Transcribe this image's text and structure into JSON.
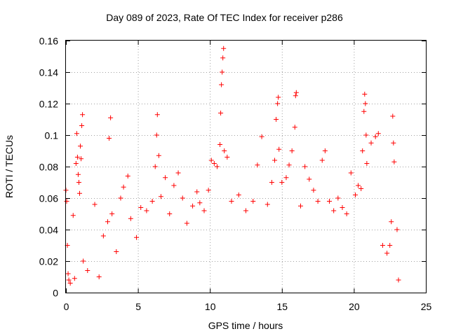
{
  "chart_data": {
    "type": "scatter",
    "title": "Day 089 of 2023, Rate Of TEC Index for receiver p286",
    "xlabel": "GPS time / hours",
    "ylabel": "ROTI / TECUs",
    "xlim": [
      0,
      25
    ],
    "ylim": [
      0,
      0.16
    ],
    "x_ticks": [
      "0",
      "5",
      "10",
      "15",
      "20",
      "25"
    ],
    "y_ticks": [
      "0",
      "0.02",
      "0.04",
      "0.06",
      "0.08",
      "0.1",
      "0.12",
      "0.14",
      "0.16"
    ],
    "grid": true,
    "marker": "plus",
    "color": "#ff0000",
    "series": [
      {
        "points": [
          [
            0.0,
            0.065
          ],
          [
            0.05,
            0.058
          ],
          [
            0.1,
            0.03
          ],
          [
            0.15,
            0.012
          ],
          [
            0.2,
            0.008
          ],
          [
            0.3,
            0.006
          ],
          [
            0.5,
            0.049
          ],
          [
            0.6,
            0.009
          ],
          [
            0.7,
            0.082
          ],
          [
            0.75,
            0.101
          ],
          [
            0.8,
            0.086
          ],
          [
            0.85,
            0.075
          ],
          [
            0.9,
            0.07
          ],
          [
            0.95,
            0.063
          ],
          [
            1.0,
            0.093
          ],
          [
            1.05,
            0.085
          ],
          [
            1.1,
            0.106
          ],
          [
            1.15,
            0.113
          ],
          [
            1.2,
            0.02
          ],
          [
            1.5,
            0.014
          ],
          [
            2.0,
            0.056
          ],
          [
            2.3,
            0.01
          ],
          [
            2.6,
            0.036
          ],
          [
            2.9,
            0.045
          ],
          [
            3.0,
            0.098
          ],
          [
            3.1,
            0.111
          ],
          [
            3.2,
            0.05
          ],
          [
            3.5,
            0.026
          ],
          [
            3.8,
            0.06
          ],
          [
            4.0,
            0.067
          ],
          [
            4.3,
            0.074
          ],
          [
            4.5,
            0.047
          ],
          [
            4.9,
            0.035
          ],
          [
            5.2,
            0.054
          ],
          [
            5.6,
            0.052
          ],
          [
            6.0,
            0.058
          ],
          [
            6.2,
            0.08
          ],
          [
            6.3,
            0.1
          ],
          [
            6.35,
            0.113
          ],
          [
            6.45,
            0.087
          ],
          [
            6.6,
            0.061
          ],
          [
            6.9,
            0.073
          ],
          [
            7.2,
            0.05
          ],
          [
            7.5,
            0.068
          ],
          [
            7.8,
            0.076
          ],
          [
            8.1,
            0.06
          ],
          [
            8.4,
            0.044
          ],
          [
            8.8,
            0.055
          ],
          [
            9.1,
            0.064
          ],
          [
            9.3,
            0.057
          ],
          [
            9.6,
            0.052
          ],
          [
            9.9,
            0.065
          ],
          [
            10.1,
            0.084
          ],
          [
            10.3,
            0.082
          ],
          [
            10.5,
            0.08
          ],
          [
            10.7,
            0.094
          ],
          [
            10.75,
            0.114
          ],
          [
            10.8,
            0.132
          ],
          [
            10.85,
            0.14
          ],
          [
            10.9,
            0.149
          ],
          [
            10.95,
            0.155
          ],
          [
            11.0,
            0.09
          ],
          [
            11.2,
            0.086
          ],
          [
            11.5,
            0.058
          ],
          [
            12.0,
            0.062
          ],
          [
            12.5,
            0.052
          ],
          [
            13.0,
            0.058
          ],
          [
            13.3,
            0.081
          ],
          [
            13.6,
            0.099
          ],
          [
            14.0,
            0.056
          ],
          [
            14.3,
            0.07
          ],
          [
            14.5,
            0.084
          ],
          [
            14.6,
            0.11
          ],
          [
            14.7,
            0.12
          ],
          [
            14.75,
            0.124
          ],
          [
            14.8,
            0.091
          ],
          [
            15.0,
            0.07
          ],
          [
            15.3,
            0.073
          ],
          [
            15.5,
            0.081
          ],
          [
            15.7,
            0.09
          ],
          [
            15.9,
            0.105
          ],
          [
            15.95,
            0.125
          ],
          [
            16.0,
            0.127
          ],
          [
            16.3,
            0.055
          ],
          [
            16.6,
            0.08
          ],
          [
            16.9,
            0.072
          ],
          [
            17.2,
            0.065
          ],
          [
            17.5,
            0.058
          ],
          [
            17.8,
            0.084
          ],
          [
            18.0,
            0.09
          ],
          [
            18.3,
            0.058
          ],
          [
            18.6,
            0.052
          ],
          [
            18.9,
            0.06
          ],
          [
            19.2,
            0.054
          ],
          [
            19.5,
            0.05
          ],
          [
            19.8,
            0.076
          ],
          [
            20.1,
            0.062
          ],
          [
            20.3,
            0.068
          ],
          [
            20.5,
            0.066
          ],
          [
            20.6,
            0.09
          ],
          [
            20.7,
            0.115
          ],
          [
            20.75,
            0.126
          ],
          [
            20.8,
            0.12
          ],
          [
            20.85,
            0.1
          ],
          [
            20.9,
            0.082
          ],
          [
            21.2,
            0.095
          ],
          [
            21.5,
            0.099
          ],
          [
            21.7,
            0.101
          ],
          [
            22.0,
            0.03
          ],
          [
            22.3,
            0.025
          ],
          [
            22.5,
            0.03
          ],
          [
            22.6,
            0.045
          ],
          [
            22.7,
            0.112
          ],
          [
            22.75,
            0.095
          ],
          [
            22.8,
            0.083
          ],
          [
            23.0,
            0.04
          ],
          [
            23.1,
            0.008
          ]
        ]
      }
    ]
  }
}
